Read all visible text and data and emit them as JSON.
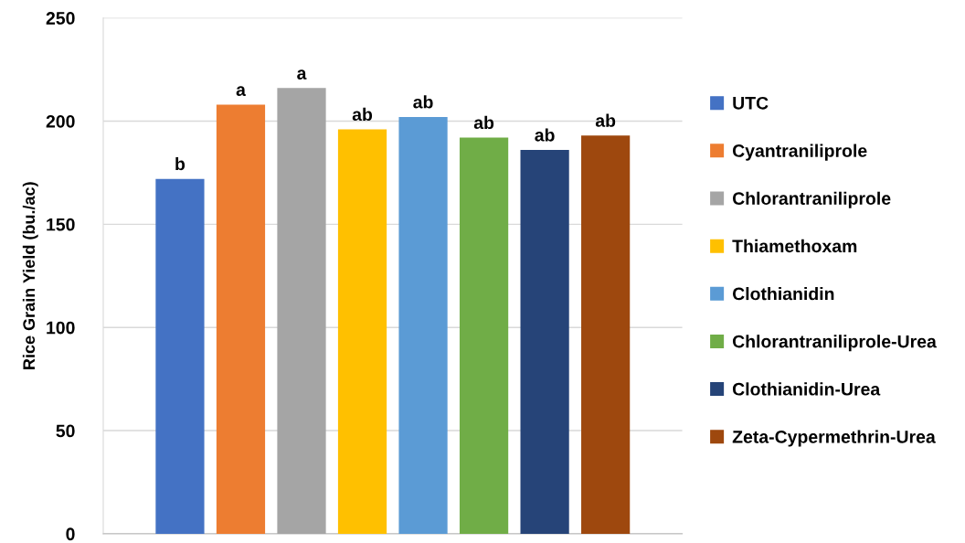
{
  "chart_data": {
    "type": "bar",
    "ylabel": "Rice Grain Yield (bu./ac)",
    "categories": [
      null
    ],
    "series": [
      {
        "name": "UTC",
        "color": "#4472c4",
        "values": [
          172
        ],
        "value_labels": [
          "b"
        ]
      },
      {
        "name": "Cyantraniliprole",
        "color": "#ed7d31",
        "values": [
          208
        ],
        "value_labels": [
          "a"
        ]
      },
      {
        "name": "Chlorantraniliprole",
        "color": "#a5a5a5",
        "values": [
          216
        ],
        "value_labels": [
          "a"
        ]
      },
      {
        "name": "Thiamethoxam",
        "color": "#ffc000",
        "values": [
          196
        ],
        "value_labels": [
          "ab"
        ]
      },
      {
        "name": "Clothianidin",
        "color": "#5b9bd5",
        "values": [
          202
        ],
        "value_labels": [
          "ab"
        ]
      },
      {
        "name": "Chlorantraniliprole-Urea",
        "color": "#70ad47",
        "values": [
          192
        ],
        "value_labels": [
          "ab"
        ]
      },
      {
        "name": "Clothianidin-Urea",
        "color": "#264478",
        "values": [
          186
        ],
        "value_labels": [
          "ab"
        ]
      },
      {
        "name": "Zeta-Cypermethrin-Urea",
        "color": "#9e480e",
        "values": [
          193
        ],
        "value_labels": [
          "ab"
        ]
      }
    ],
    "ylim": [
      0,
      250
    ],
    "yticks": [
      0,
      50,
      100,
      150,
      200,
      250
    ],
    "grid": "y",
    "legend": "right"
  }
}
